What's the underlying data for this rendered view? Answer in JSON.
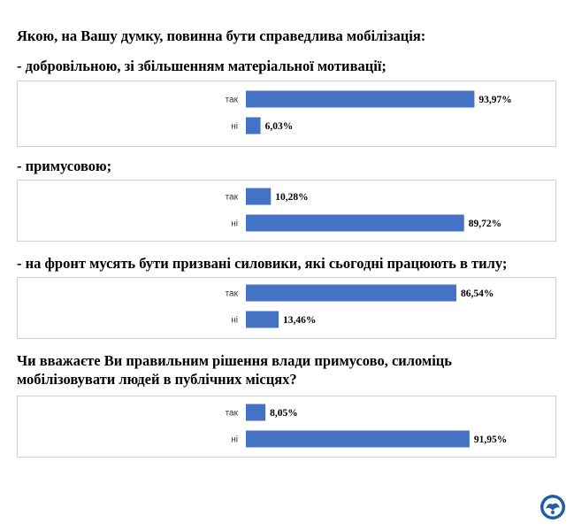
{
  "headings": {
    "main_question": "Якою, на Вашу думку, повинна бути справедлива мобілізація:",
    "option_1": "- добровільною, зі збільшенням матеріальної мотивації;",
    "option_2": "- примусовою;",
    "option_3": "- на фронт мусять бути призвані силовики, які сьогодні працюють в тилу;",
    "question_2_line_1": "Чи вважаєте Ви правильним рішення влади примусово, силоміць",
    "question_2_line_2": "мобілізовувати людей в публічних місцях?"
  },
  "colors": {
    "bar": "#4472c4",
    "frame": "#d0d0d0"
  },
  "logo": {
    "icon": "organization-logo-icon"
  },
  "chart_data": [
    {
      "type": "bar",
      "orientation": "horizontal",
      "categories": [
        "так",
        "ні"
      ],
      "values": [
        93.97,
        6.03
      ],
      "labels": [
        "93,97%",
        "6,03%"
      ],
      "xlim": [
        0,
        100
      ]
    },
    {
      "type": "bar",
      "orientation": "horizontal",
      "categories": [
        "так",
        "ні"
      ],
      "values": [
        10.28,
        89.72
      ],
      "labels": [
        "10,28%",
        "89,72%"
      ],
      "xlim": [
        0,
        100
      ]
    },
    {
      "type": "bar",
      "orientation": "horizontal",
      "categories": [
        "так",
        "ні"
      ],
      "values": [
        86.54,
        13.46
      ],
      "labels": [
        "86,54%",
        "13,46%"
      ],
      "xlim": [
        0,
        100
      ]
    },
    {
      "type": "bar",
      "orientation": "horizontal",
      "categories": [
        "так",
        "ні"
      ],
      "values": [
        8.05,
        91.95
      ],
      "labels": [
        "8,05%",
        "91,95%"
      ],
      "xlim": [
        0,
        100
      ]
    }
  ]
}
